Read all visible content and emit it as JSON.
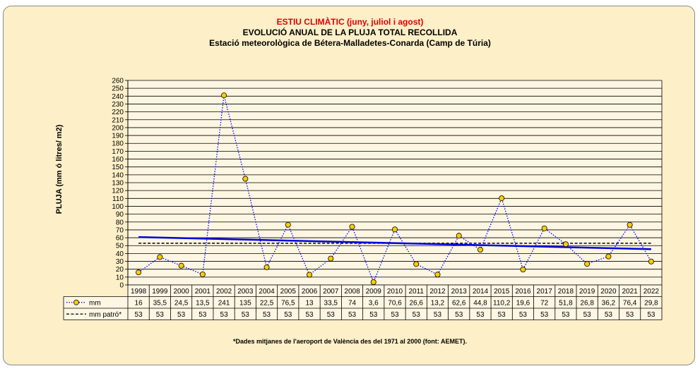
{
  "title_line1": "ESTIU CLIMÀTIC (juny, juliol i agost)",
  "title_line2": "EVOLUCIÓ ANUAL DE LA PLUJA TOTAL RECOLLIDA",
  "title_line3": "Estació meteorològica de Bétera-Malladetes-Conarda (Camp de Túria)",
  "footnote": "*Dades mitjanes de l'aeroport de València des del 1971 al 2000 (font: AEMET).",
  "colors": {
    "series": "#0000ff",
    "marker_fill": "#ffcc00",
    "trend": "#0000dd",
    "reference": "#000000"
  },
  "chart_data": {
    "type": "line",
    "ylabel": "PLUJA (mm ó litres/ m2)",
    "ylim": [
      0,
      260
    ],
    "ytick_step": 10,
    "grid": true,
    "categories": [
      "1998",
      "1999",
      "2000",
      "2001",
      "2002",
      "2003",
      "2004",
      "2005",
      "2006",
      "2007",
      "2008",
      "2009",
      "2010",
      "2011",
      "2012",
      "2013",
      "2014",
      "2015",
      "2016",
      "2017",
      "2018",
      "2019",
      "2020",
      "2021",
      "2022"
    ],
    "series": [
      {
        "name": "mm",
        "style": "dotted-markers",
        "values": [
          16,
          35.5,
          24.5,
          13.5,
          241,
          135,
          22.5,
          76.5,
          13,
          33.5,
          74,
          3.6,
          70.6,
          26.6,
          13.2,
          62.6,
          44.8,
          110.2,
          19.6,
          72,
          51.8,
          26.8,
          36.2,
          76.4,
          29.8
        ],
        "labels": [
          "16",
          "35,5",
          "24,5",
          "13,5",
          "241",
          "135",
          "22,5",
          "76,5",
          "13",
          "33,5",
          "74",
          "3,6",
          "70,6",
          "26,6",
          "13,2",
          "62,6",
          "44,8",
          "110,2",
          "19,6",
          "72",
          "51,8",
          "26,8",
          "36,2",
          "76,4",
          "29,8"
        ]
      },
      {
        "name": "mm patró*",
        "style": "dashed",
        "values": [
          53,
          53,
          53,
          53,
          53,
          53,
          53,
          53,
          53,
          53,
          53,
          53,
          53,
          53,
          53,
          53,
          53,
          53,
          53,
          53,
          53,
          53,
          53,
          53,
          53
        ],
        "labels": [
          "53",
          "53",
          "53",
          "53",
          "53",
          "53",
          "53",
          "53",
          "53",
          "53",
          "53",
          "53",
          "53",
          "53",
          "53",
          "53",
          "53",
          "53",
          "53",
          "53",
          "53",
          "53",
          "53",
          "53",
          "53"
        ]
      }
    ],
    "trendline": {
      "series": "mm",
      "type": "linear"
    }
  }
}
